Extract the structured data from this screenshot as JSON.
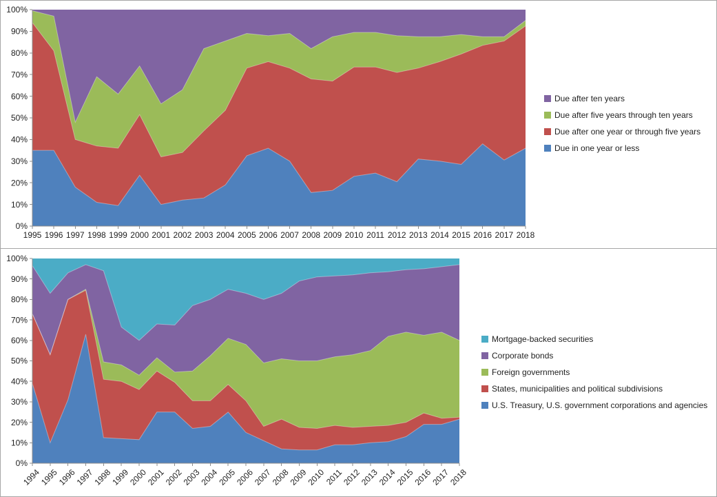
{
  "page": {
    "background": "#ffffff",
    "box_border_color": "#a6a6a6",
    "axis_line_color": "#8c8c8c",
    "axis_label_color": "#1f1f1f"
  },
  "chart_data": [
    {
      "type": "area",
      "stacked": true,
      "percent_stacked": true,
      "title": "",
      "xlabel": "",
      "ylabel": "",
      "ylim": [
        0,
        100
      ],
      "grid": false,
      "legend_position": "right",
      "y_ticks": [
        "0%",
        "10%",
        "20%",
        "30%",
        "40%",
        "50%",
        "60%",
        "70%",
        "80%",
        "90%",
        "100%"
      ],
      "x": [
        "1995",
        "1996",
        "1997",
        "1998",
        "1999",
        "2000",
        "2001",
        "2002",
        "2003",
        "2004",
        "2005",
        "2006",
        "2007",
        "2008",
        "2009",
        "2010",
        "2011",
        "2012",
        "2013",
        "2014",
        "2015",
        "2016",
        "2017",
        "2018"
      ],
      "series": [
        {
          "name": "Due in one year or less",
          "color": "#4F81BD",
          "values": [
            35,
            35,
            18,
            11,
            9.5,
            23.5,
            10,
            12,
            13,
            19,
            32.5,
            36,
            30,
            15.5,
            16.5,
            23,
            24.5,
            20.5,
            31,
            30,
            28.5,
            38,
            30.5,
            36
          ]
        },
        {
          "name": "Due after one year or through five years",
          "color": "#C0504D",
          "values": [
            59,
            46,
            22,
            26,
            26.5,
            28,
            22,
            22,
            31,
            34.5,
            40.5,
            40,
            43,
            52.5,
            50.5,
            50.5,
            49,
            50.5,
            42,
            46,
            51,
            45.5,
            55,
            56.5
          ]
        },
        {
          "name": "Due after five years through ten years",
          "color": "#9BBB59",
          "values": [
            5.5,
            16,
            8,
            32,
            25,
            22.5,
            24.5,
            29,
            38,
            32,
            16,
            12,
            16,
            14,
            20.5,
            16,
            16,
            17,
            14.5,
            11.5,
            9,
            4,
            2,
            2.5
          ]
        },
        {
          "name": "Due after ten years",
          "color": "#8064A2",
          "values": [
            0.5,
            3,
            52,
            31,
            39,
            26,
            43.5,
            37,
            18,
            14.5,
            11,
            12,
            11,
            18,
            12.5,
            10.5,
            10.5,
            12,
            12.5,
            12.5,
            11.5,
            12.5,
            12.5,
            5
          ]
        }
      ]
    },
    {
      "type": "area",
      "stacked": true,
      "percent_stacked": true,
      "title": "",
      "xlabel": "",
      "ylabel": "",
      "ylim": [
        0,
        100
      ],
      "grid": false,
      "legend_position": "right",
      "y_ticks": [
        "0%",
        "10%",
        "20%",
        "30%",
        "40%",
        "50%",
        "60%",
        "70%",
        "80%",
        "90%",
        "100%"
      ],
      "x": [
        "1994",
        "1995",
        "1996",
        "1997",
        "1998",
        "1999",
        "2000",
        "2001",
        "2002",
        "2003",
        "2004",
        "2005",
        "2006",
        "2007",
        "2008",
        "2009",
        "2010",
        "2011",
        "2012",
        "2013",
        "2014",
        "2015",
        "2016",
        "2017",
        "2018"
      ],
      "series": [
        {
          "name": "U.S. Treasury, U.S. government corporations and agencies",
          "color": "#4F81BD",
          "values": [
            39,
            10,
            31,
            63,
            12.5,
            12,
            11.5,
            25,
            25,
            17,
            18,
            25,
            15,
            11,
            7,
            6.5,
            6.5,
            9,
            9,
            10,
            10.5,
            13,
            19,
            19,
            21.5
          ]
        },
        {
          "name": "States, municipalities and political subdivisions",
          "color": "#C0504D",
          "values": [
            34,
            43,
            49,
            21.5,
            28.5,
            28,
            24.5,
            20,
            14.5,
            13.5,
            12.5,
            13.5,
            15.5,
            7,
            14.5,
            11,
            10.5,
            9.5,
            8.5,
            8,
            8,
            7,
            5.5,
            3,
            1
          ]
        },
        {
          "name": "Foreign governments",
          "color": "#9BBB59",
          "values": [
            0,
            0,
            0,
            0.5,
            8.5,
            8,
            7,
            6.5,
            5,
            14.5,
            22,
            22.5,
            27.5,
            31,
            29.5,
            32.5,
            33,
            33.5,
            35.5,
            37,
            43.5,
            44,
            38,
            42,
            37.5
          ]
        },
        {
          "name": "Corporate bonds",
          "color": "#8064A2",
          "values": [
            23.5,
            30,
            13,
            12,
            44.5,
            18.5,
            17,
            16.5,
            23,
            32,
            27.5,
            24,
            25,
            31,
            32,
            39,
            41,
            39.5,
            39,
            38,
            31.5,
            30.5,
            32.5,
            32,
            37
          ]
        },
        {
          "name": "Mortgage-backed securities",
          "color": "#4BACC6",
          "values": [
            3.5,
            17,
            7,
            3,
            6,
            33.5,
            40,
            32,
            32.5,
            23,
            20,
            15,
            17,
            20,
            17,
            11,
            9,
            8.5,
            8,
            7,
            6.5,
            5.5,
            5,
            4,
            3
          ]
        }
      ]
    }
  ]
}
